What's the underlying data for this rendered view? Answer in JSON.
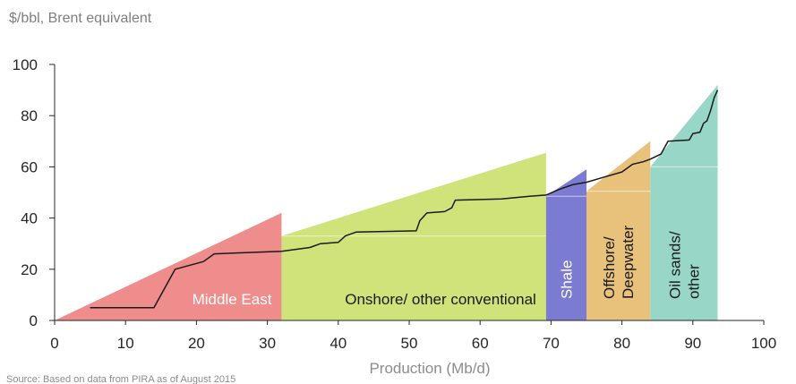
{
  "chart_data": {
    "type": "area",
    "subtitle": "$/bbl, Brent equivalent",
    "xlabel": "Production (Mb/d)",
    "ylabel": "",
    "source": "Source: Based on data from PIRA as of August 2015",
    "xlim": [
      0,
      100
    ],
    "ylim": [
      0,
      100
    ],
    "xticks": [
      0,
      10,
      20,
      30,
      40,
      50,
      60,
      70,
      80,
      90,
      100
    ],
    "yticks": [
      0,
      20,
      40,
      60,
      80,
      100
    ],
    "segments": [
      {
        "label": [
          "Middle East"
        ],
        "x0": 0,
        "x1": 32,
        "y_start": 0,
        "y_end": 42,
        "color": "#ef8c8c",
        "label_orient": "horizontal",
        "label_color": "light"
      },
      {
        "label": [
          "Onshore/ other conventional"
        ],
        "x0": 32,
        "x1": 69.3,
        "y_start": 33,
        "y_end": 65.5,
        "color": "#cfe37a",
        "label_orient": "horizontal",
        "label_color": "dark"
      },
      {
        "label": [
          "Shale"
        ],
        "x0": 69.3,
        "x1": 75,
        "y_start": 48.5,
        "y_end": 59,
        "color": "#7b7bd1",
        "label_orient": "vertical",
        "label_color": "light"
      },
      {
        "label": [
          "Offshore/",
          "Deepwater"
        ],
        "x0": 75,
        "x1": 84,
        "y_start": 50.5,
        "y_end": 70,
        "color": "#e8c27a",
        "label_orient": "vertical",
        "label_color": "dark"
      },
      {
        "label": [
          "Oil sands/",
          "other"
        ],
        "x0": 84,
        "x1": 93.5,
        "y_start": 60,
        "y_end": 92,
        "color": "#98d6c8",
        "label_orient": "vertical",
        "label_color": "dark"
      }
    ],
    "cost_curve": {
      "x": [
        5,
        14,
        17,
        21,
        22.5,
        32,
        36,
        37.5,
        40,
        41,
        42.5,
        51,
        51.5,
        52.5,
        55,
        56,
        56.5,
        63,
        67,
        69.3,
        71,
        73,
        75,
        77.5,
        80,
        81.5,
        83,
        84,
        85.5,
        86.5,
        89.5,
        90,
        91,
        91.5,
        92,
        92.5,
        93,
        93.5
      ],
      "y": [
        5,
        5,
        20,
        23,
        26,
        27,
        28.5,
        30,
        30.5,
        33,
        34.5,
        35,
        39,
        42,
        42.5,
        44,
        47,
        47.5,
        48.5,
        49,
        51,
        53,
        54,
        56,
        58,
        61,
        62,
        63,
        65,
        70,
        70.5,
        73,
        73.5,
        77,
        78,
        82,
        87,
        90
      ]
    }
  }
}
